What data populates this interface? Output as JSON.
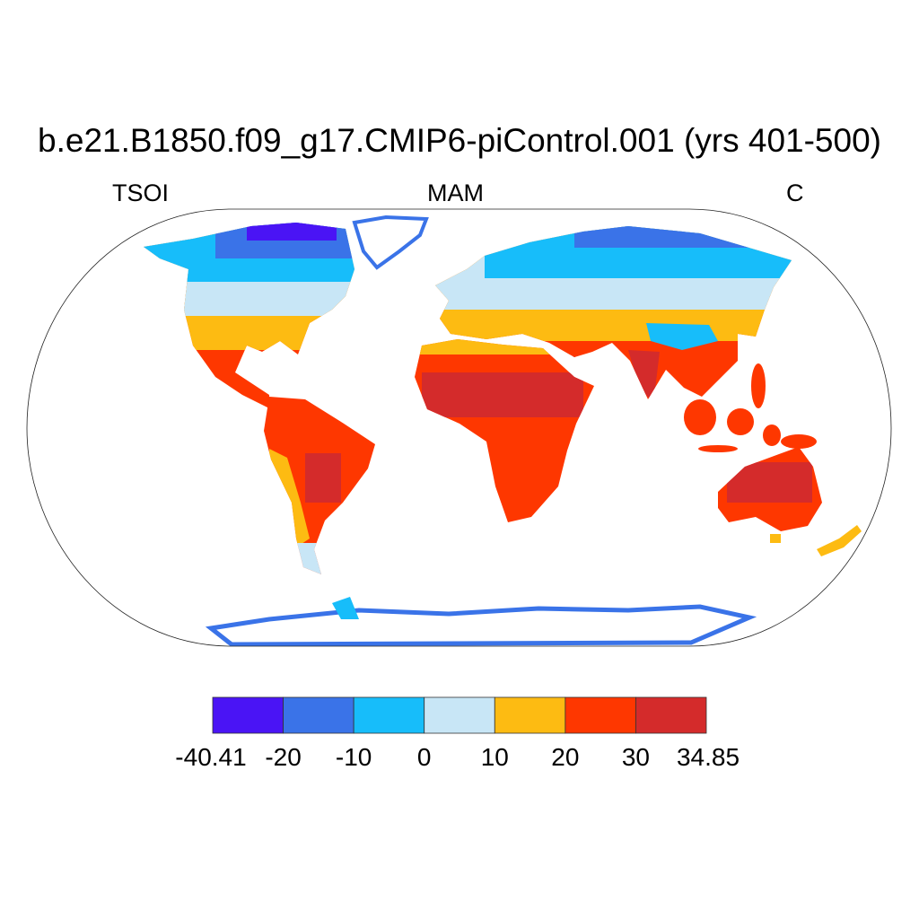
{
  "title": "b.e21.B1850.f09_g17.CMIP6-piControl.001 (yrs 401-500)",
  "left_label": "TSOI",
  "center_label": "MAM",
  "right_label": "C",
  "colorbar": {
    "labels": [
      "-40.41",
      "-20",
      "-10",
      "0",
      "10",
      "20",
      "30",
      "34.85"
    ],
    "colors": [
      "#4a14f5",
      "#3a73e8",
      "#17bdfa",
      "#c8e6f6",
      "#fdbb12",
      "#fe3700",
      "#d42b2b"
    ]
  }
}
